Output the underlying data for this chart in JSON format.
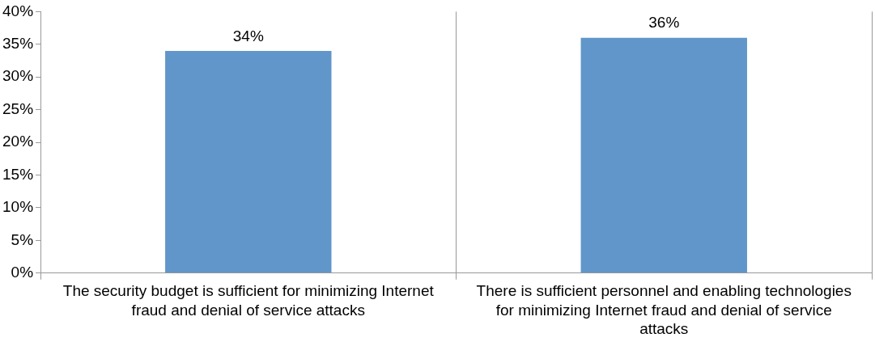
{
  "chart_data": {
    "type": "bar",
    "categories": [
      "The security budget is sufficient for minimizing Internet fraud and denial of service attacks",
      "There is sufficient personnel and enabling technologies for minimizing Internet fraud and denial of service attacks"
    ],
    "values": [
      34,
      36
    ],
    "color": "#6096c9",
    "value_labels": [
      "34%",
      "36%"
    ],
    "ylim": [
      0,
      40
    ],
    "yticks": [
      {
        "value": 0,
        "label": "0%"
      },
      {
        "value": 5,
        "label": "5%"
      },
      {
        "value": 10,
        "label": "10%"
      },
      {
        "value": 15,
        "label": "15%"
      },
      {
        "value": 20,
        "label": "20%"
      },
      {
        "value": 25,
        "label": "25%"
      },
      {
        "value": 30,
        "label": "30%"
      },
      {
        "value": 35,
        "label": "35%"
      },
      {
        "value": 40,
        "label": "40%"
      }
    ],
    "grid": "x",
    "legend": false
  }
}
